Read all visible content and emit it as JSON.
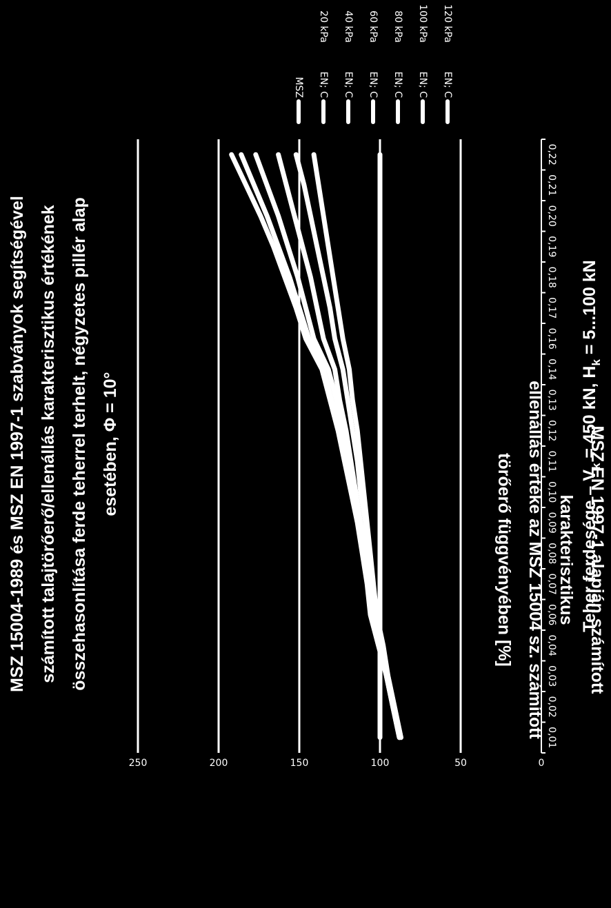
{
  "chart_data": {
    "type": "line",
    "title_lines": [
      "MSZ 15004-1989 és MSZ EN 1997-1 szabványok segítségével",
      "számított talajtörőerő/ellenállás karakterisztikus értékének",
      "összehasonlítása ferde teherrel terhelt, négyzetes pillér alap",
      "esetében, Φ = 10°"
    ],
    "xlabel_prefix": "Teher ferdesége – V",
    "xlabel_sub1": "k",
    "xlabel_mid": " = 450 kN, H",
    "xlabel_sub2": "k",
    "xlabel_suffix": " = 5...100 kN",
    "ylabel_lines": [
      "MSZ EN 1997-1 alapján számított",
      "karakterisztikus",
      "ellenállás értéke az MSZ 15004 sz. számított",
      "törőerő függvényében [%]"
    ],
    "categories": [
      "0,01",
      "0,02",
      "0,03",
      "0,04",
      "0,06",
      "0,07",
      "0,08",
      "0,09",
      "0,10",
      "0,11",
      "0,12",
      "0,13",
      "0,14",
      "0,16",
      "0,17",
      "0,18",
      "0,19",
      "0,20",
      "0,21",
      "0,22"
    ],
    "yticks": [
      "0",
      "50",
      "100",
      "150",
      "200",
      "250"
    ],
    "ylim": [
      0,
      250
    ],
    "grid": true,
    "legend_position": "right",
    "series": [
      {
        "name": "MSZ",
        "extra": "",
        "values": [
          100,
          100,
          100,
          100,
          100,
          100,
          100,
          100,
          100,
          100,
          100,
          100,
          100,
          100,
          100,
          100,
          100,
          100,
          100,
          100
        ]
      },
      {
        "name": "EN; C",
        "extra": "20 kPa",
        "values": [
          87,
          91,
          95,
          99,
          104,
          106,
          109,
          112,
          115,
          119,
          123,
          127,
          132,
          141,
          146,
          151,
          157,
          163,
          170,
          177
        ]
      },
      {
        "name": "EN; C",
        "extra": "40 kPa",
        "values": [
          88,
          92,
          96,
          100,
          105,
          107,
          110,
          113,
          117,
          121,
          125,
          130,
          135,
          144,
          150,
          156,
          163,
          170,
          178,
          186
        ]
      },
      {
        "name": "EN; C",
        "extra": "60 kPa",
        "values": [
          88,
          92,
          96,
          101,
          106,
          108,
          111,
          114,
          118,
          122,
          126,
          131,
          136,
          146,
          152,
          159,
          166,
          174,
          183,
          192
        ]
      },
      {
        "name": "EN; C",
        "extra": "80 kPa",
        "values": [
          88,
          92,
          96,
          100,
          104,
          107,
          109,
          112,
          115,
          118,
          121,
          125,
          128,
          135,
          139,
          143,
          148,
          153,
          158,
          163
        ]
      },
      {
        "name": "EN; C",
        "extra": "100 kPa",
        "values": [
          88,
          92,
          96,
          99,
          103,
          105,
          107,
          109,
          112,
          114,
          117,
          120,
          123,
          128,
          131,
          135,
          139,
          143,
          147,
          152
        ]
      },
      {
        "name": "EN; C",
        "extra": "120 kPa",
        "values": [
          87,
          91,
          95,
          98,
          102,
          104,
          106,
          108,
          110,
          112,
          114,
          117,
          119,
          123,
          126,
          129,
          132,
          135,
          138,
          141
        ]
      }
    ]
  }
}
